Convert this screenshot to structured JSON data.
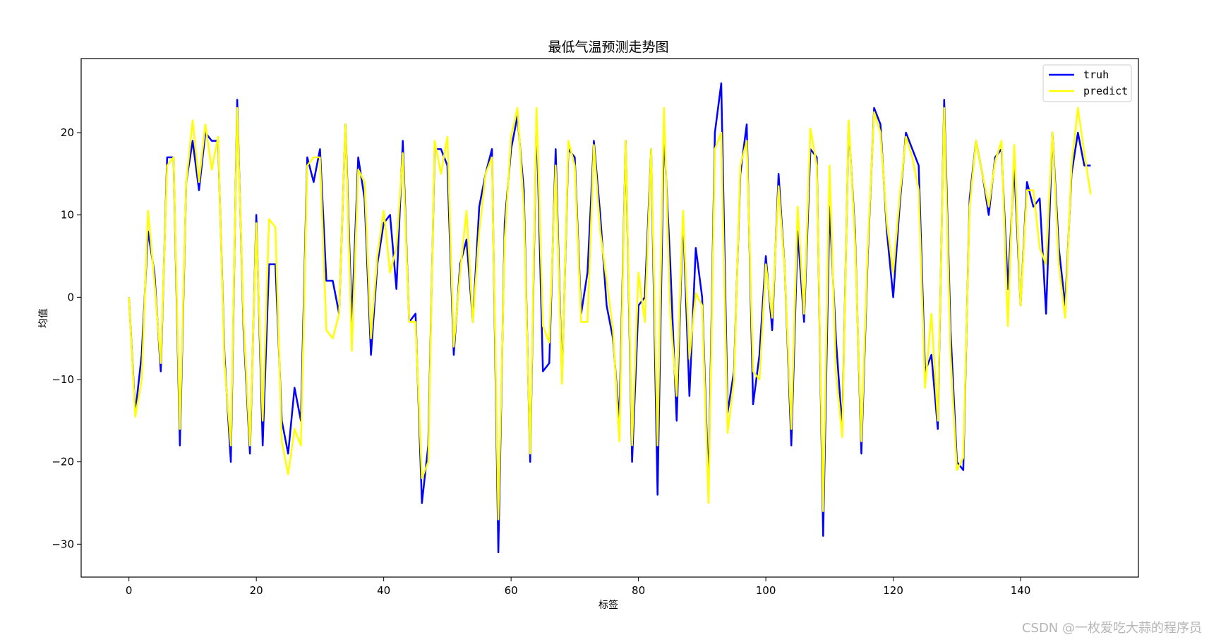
{
  "watermark": "CSDN @一枚爱吃大蒜的程序员",
  "chart_data": {
    "type": "line",
    "title": "最低气温预测走势图",
    "xlabel": "标签",
    "ylabel": "均值",
    "xlim": [
      -7.5,
      158.5
    ],
    "ylim": [
      -34,
      29
    ],
    "xticks": [
      0,
      20,
      40,
      60,
      80,
      100,
      120,
      140
    ],
    "yticks": [
      -30,
      -20,
      -10,
      0,
      10,
      20
    ],
    "grid": false,
    "legend_position": "top-right",
    "series": [
      {
        "name": "truh",
        "color": "#0000ff",
        "values": [
          0,
          -14,
          -7,
          8,
          3,
          -9,
          17,
          17,
          -18,
          14,
          19,
          13,
          20,
          19,
          19,
          -7,
          -20,
          24,
          -4,
          -19,
          10,
          -18,
          4,
          4,
          -15,
          -19,
          -11,
          -15,
          17,
          14,
          18,
          2,
          2,
          -2,
          21,
          -3,
          17,
          12,
          -7,
          4,
          9,
          10,
          1,
          19,
          -3,
          -2,
          -25,
          -18,
          18,
          18,
          16,
          -7,
          4,
          7,
          -3,
          11,
          15,
          18,
          -31,
          9,
          18,
          22,
          13,
          -20,
          22,
          -9,
          -8,
          18,
          -10,
          18,
          17,
          -2,
          3,
          19,
          10,
          -1,
          -5,
          -15,
          19,
          -20,
          -1,
          0,
          18,
          -24,
          20,
          4,
          -15,
          10,
          -12,
          6,
          0,
          -23,
          20,
          26,
          -14,
          -9,
          15,
          21,
          -13,
          -7,
          5,
          -4,
          15,
          3,
          -18,
          8,
          -3,
          18,
          17,
          -29,
          11,
          -5,
          -16,
          21,
          8,
          -19,
          5,
          23,
          21,
          8,
          0,
          11,
          20,
          18,
          16,
          -9,
          -7,
          -16,
          24,
          -4,
          -20,
          -21,
          12,
          19,
          15,
          10,
          17,
          18,
          1,
          16,
          -1,
          14,
          11,
          12,
          -2,
          20,
          6,
          -1,
          15,
          20,
          16,
          16
        ]
      },
      {
        "name": "predict",
        "color": "#ffff00",
        "values": [
          0,
          -14.5,
          -10,
          10.5,
          2,
          -8,
          16,
          17,
          -16,
          14,
          21.5,
          14,
          21,
          15.5,
          19.5,
          -8,
          -18,
          23,
          -3,
          -18,
          9,
          -15,
          9.5,
          8.5,
          -17.5,
          -21.5,
          -16,
          -18,
          16,
          17,
          17,
          -4,
          -5,
          -2,
          21,
          -6.5,
          15.5,
          14,
          -5,
          5,
          10.5,
          3,
          6,
          17.5,
          -3,
          -3,
          -22,
          -20,
          19,
          15,
          19.5,
          -6,
          3,
          10.5,
          -3,
          8,
          15,
          17,
          -27,
          7,
          19.5,
          23,
          11,
          -19,
          23,
          -3.5,
          -5.5,
          16,
          -10.5,
          19,
          16,
          -3,
          -3,
          18.5,
          8,
          2,
          -4,
          -17.5,
          19,
          -18,
          3,
          -3,
          18,
          -18,
          23,
          -2,
          -12,
          10.5,
          -7.5,
          0.5,
          -1,
          -25,
          18,
          20,
          -16.5,
          -10,
          16,
          19,
          -9,
          -10,
          4,
          -2.5,
          13.5,
          3,
          -16,
          11,
          -2,
          20.5,
          16,
          -26,
          16,
          -9,
          -17,
          21.5,
          7,
          -17.5,
          6,
          22.5,
          20,
          9,
          3,
          12,
          19.5,
          17,
          13,
          -11,
          -2,
          -15,
          23,
          -7,
          -21,
          -19.5,
          11,
          19,
          15,
          11,
          16.5,
          19,
          -3.5,
          18.5,
          -1,
          13,
          13,
          6,
          4,
          20,
          4,
          -2.5,
          16,
          23,
          17.5,
          12.5
        ]
      }
    ]
  }
}
